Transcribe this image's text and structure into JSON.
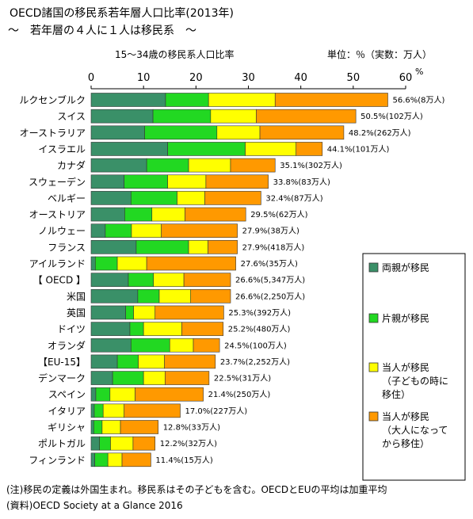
{
  "chart_data": {
    "type": "bar",
    "orientation": "horizontal",
    "stacked": true,
    "title": "OECD諸国の移民系若年層人口比率(2013年)",
    "subtitle": "～　若年層の４人に１人は移民系　～",
    "xlabel": "15～34歳の移民系人口比率",
    "unit_note": "単位：％（実数：万人）",
    "x_unit": "%",
    "xlim": [
      0,
      60
    ],
    "xticks": [
      0,
      10,
      20,
      30,
      40,
      50,
      60
    ],
    "grid": false,
    "legend_position": "right",
    "categories": [
      "ルクセンブルク",
      "スイス",
      "オーストラリア",
      "イスラエル",
      "カナダ",
      "スウェーデン",
      "ベルギー",
      "オーストリア",
      "ノルウェー",
      "フランス",
      "アイルランド",
      "【 OECD 】",
      "米国",
      "英国",
      "ドイツ",
      "オランダ",
      "【EU-15】",
      "デンマーク",
      "スペイン",
      "イタリア",
      "ギリシャ",
      "ポルトガル",
      "フィンランド"
    ],
    "series": [
      {
        "name": "両親が移民",
        "color": "#3a9068",
        "values": [
          14.2,
          11.8,
          10.2,
          14.6,
          10.6,
          6.3,
          7.6,
          6.4,
          2.7,
          8.6,
          0.8,
          7.1,
          8.9,
          6.6,
          7.4,
          7.6,
          5.0,
          4.1,
          0.9,
          0.6,
          0.5,
          1.6,
          0.7
        ]
      },
      {
        "name": "片親が移民",
        "color": "#22d822",
        "values": [
          8.2,
          11.0,
          13.8,
          14.8,
          8.0,
          8.3,
          8.8,
          5.2,
          5.0,
          10.0,
          4.2,
          4.8,
          4.1,
          1.5,
          2.6,
          7.4,
          4.0,
          5.9,
          2.7,
          1.7,
          1.6,
          2.1,
          2.5
        ]
      },
      {
        "name": "当人が移民\n（子どもの時に\n移住）",
        "color": "#ffff00",
        "values": [
          12.7,
          8.7,
          8.2,
          9.7,
          8.0,
          7.3,
          5.3,
          6.3,
          5.7,
          3.7,
          5.6,
          5.8,
          6.0,
          4.1,
          7.3,
          4.5,
          5.0,
          4.1,
          4.8,
          4.0,
          3.5,
          4.3,
          2.7
        ]
      },
      {
        "name": "当人が移民\n（大人になって\nから移住）",
        "color": "#ff9900",
        "values": [
          21.5,
          19.0,
          16.0,
          5.0,
          8.5,
          11.9,
          10.7,
          11.6,
          14.5,
          5.6,
          17.0,
          8.9,
          7.6,
          13.1,
          7.9,
          5.0,
          9.7,
          8.4,
          13.0,
          10.7,
          7.2,
          4.2,
          5.5
        ]
      }
    ],
    "totals": [
      56.6,
      50.5,
      48.2,
      44.1,
      35.1,
      33.8,
      32.4,
      29.5,
      27.9,
      27.9,
      27.6,
      26.6,
      26.6,
      25.3,
      25.2,
      24.5,
      23.7,
      22.5,
      21.4,
      17.0,
      12.8,
      12.2,
      11.4
    ],
    "data_labels": [
      "56.6%(8万人)",
      "50.5%(102万人)",
      "48.2%(262万人)",
      "44.1%(101万人)",
      "35.1%(302万人)",
      "33.8%(83万人)",
      "32.4%(87万人)",
      "29.5%(62万人)",
      "27.9%(38万人)",
      "27.9%(418万人)",
      "27.6%(35万人)",
      "26.6%(5,347万人)",
      "26.6%(2,250万人)",
      "25.3%(392万人)",
      "25.2%(480万人)",
      "24.5%(100万人)",
      "23.7%(2,252万人)",
      "22.5%(31万人)",
      "21.4%(250万人)",
      "17.0%(227万人)",
      "12.8%(33万人)",
      "12.2%(32万人)",
      "11.4%(15万人)"
    ]
  },
  "notes": {
    "note": "(注)移民の定義は外国生まれ。移民系はその子どもを含む。OECDとEUの平均は加重平均",
    "source": "(資料)OECD Society at a Glance 2016"
  },
  "colors": {
    "bar_border": "#333333",
    "axis": "#000000",
    "text": "#000000"
  }
}
